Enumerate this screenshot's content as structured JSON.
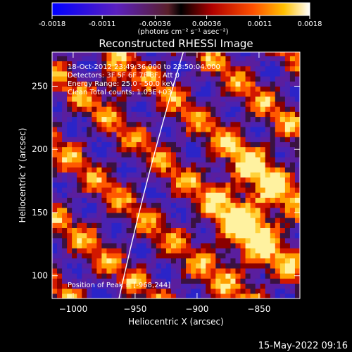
{
  "chart_data": {
    "type": "heatmap",
    "title": "Reconstructed RHESSI Image",
    "xlabel": "Heliocentric X (arcsec)",
    "ylabel": "Heliocentric Y (arcsec)",
    "xlim": [
      -1017,
      -817
    ],
    "ylim": [
      82,
      277
    ],
    "x_ticks": [
      -1000,
      -950,
      -900,
      -850
    ],
    "y_ticks": [
      100,
      150,
      200,
      250
    ],
    "colorbar": {
      "range": [
        -0.0018,
        0.0018
      ],
      "ticks": [
        -0.0018,
        -0.0011,
        -0.00036,
        0.00036,
        0.0011,
        0.0018
      ],
      "tick_labels": [
        "-0.0018",
        "-0.0011",
        "-0.00036",
        "0.00036",
        "0.0011",
        "0.0018"
      ],
      "units_label": "(photons cm⁻² s⁻¹ asec⁻²)"
    },
    "annotations": [
      "18-Oct-2012 23:49:36.000 to 23:50:04.000",
      "Detectors: 3F 5F 6F 7F 8F, Att 0",
      "Energy Range: 25.0 - 50.0 keV",
      "Clean   Total counts: 1.03E+03"
    ],
    "peak_label": "Position of Peak = [-968,244]",
    "peak": [
      -968,
      244
    ],
    "grid": false
  },
  "footer": {
    "timestamp": "15-May-2022 09:16"
  }
}
